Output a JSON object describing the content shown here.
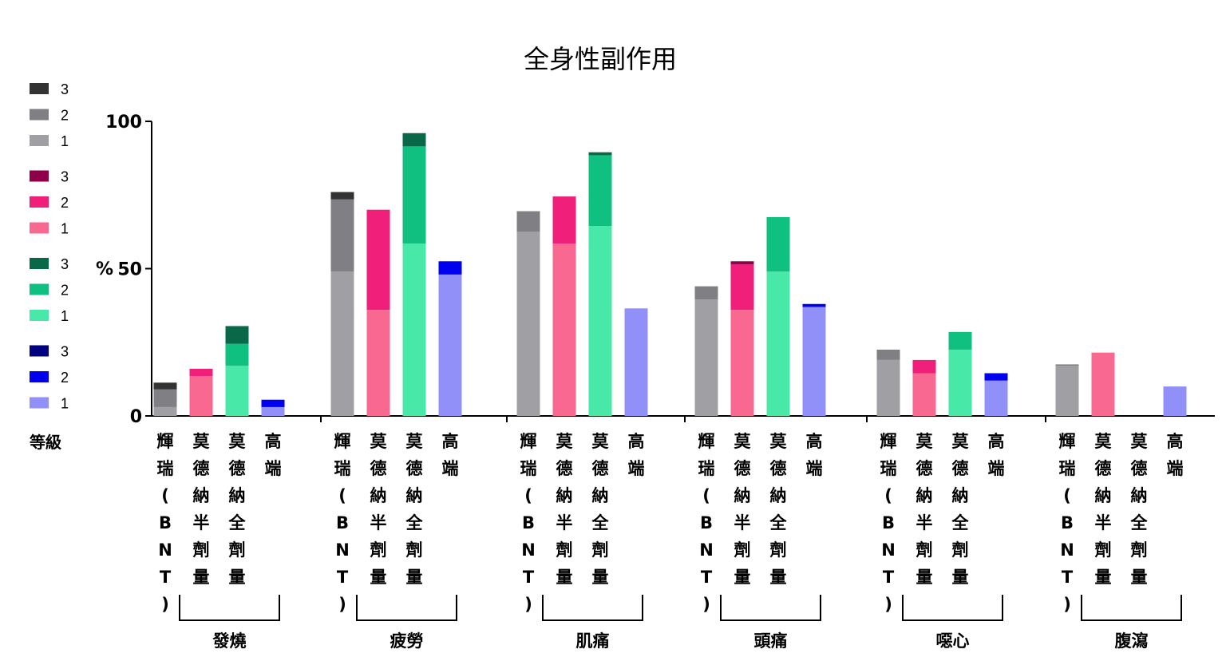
{
  "chart_data": {
    "type": "bar",
    "stacked": true,
    "title": "全身性副作用",
    "ylabel": "%",
    "ylim": [
      0,
      100
    ],
    "yticks": [
      0,
      50,
      100
    ],
    "legend_title": "等級",
    "legend_position": "left",
    "grade_labels": [
      "3",
      "2",
      "1"
    ],
    "vaccines": [
      {
        "label": "輝瑞(BNT)",
        "colors": {
          "1": "#a0a0a4",
          "2": "#808084",
          "3": "#333333"
        }
      },
      {
        "label": "莫德納半劑量",
        "colors": {
          "1": "#f86890",
          "2": "#f0207a",
          "3": "#900048"
        }
      },
      {
        "label": "莫德納全劑量",
        "colors": {
          "1": "#48e8a8",
          "2": "#10c080",
          "3": "#086848"
        }
      },
      {
        "label": "高端",
        "colors": {
          "1": "#9090f8",
          "2": "#0000f0",
          "3": "#000080"
        }
      }
    ],
    "groups": [
      {
        "label": "發燒",
        "bars": [
          {
            "g1": 3,
            "g2": 6,
            "g3": 2.3
          },
          {
            "g1": 13.5,
            "g2": 2.5,
            "g3": 0
          },
          {
            "g1": 17,
            "g2": 7.5,
            "g3": 6
          },
          {
            "g1": 3,
            "g2": 2.5,
            "g3": 0
          }
        ]
      },
      {
        "label": "疲勞",
        "bars": [
          {
            "g1": 49,
            "g2": 24.5,
            "g3": 2.5
          },
          {
            "g1": 36,
            "g2": 34,
            "g3": 0
          },
          {
            "g1": 58.5,
            "g2": 33,
            "g3": 4.5
          },
          {
            "g1": 48,
            "g2": 4.5,
            "g3": 0
          }
        ]
      },
      {
        "label": "肌痛",
        "bars": [
          {
            "g1": 62.5,
            "g2": 7,
            "g3": 0
          },
          {
            "g1": 58.5,
            "g2": 16,
            "g3": 0
          },
          {
            "g1": 64.5,
            "g2": 24,
            "g3": 1
          },
          {
            "g1": 36.5,
            "g2": 0,
            "g3": 0
          }
        ]
      },
      {
        "label": "頭痛",
        "bars": [
          {
            "g1": 39.5,
            "g2": 4.5,
            "g3": 0
          },
          {
            "g1": 36,
            "g2": 15.5,
            "g3": 1
          },
          {
            "g1": 49,
            "g2": 18.5,
            "g3": 0
          },
          {
            "g1": 37,
            "g2": 1,
            "g3": 0
          }
        ]
      },
      {
        "label": "噁心",
        "bars": [
          {
            "g1": 19,
            "g2": 3.5,
            "g3": 0
          },
          {
            "g1": 14.5,
            "g2": 4.5,
            "g3": 0
          },
          {
            "g1": 22.5,
            "g2": 6,
            "g3": 0
          },
          {
            "g1": 12,
            "g2": 2.5,
            "g3": 0
          }
        ]
      },
      {
        "label": "腹瀉",
        "bars": [
          {
            "g1": 17,
            "g2": 0.5,
            "g3": 0
          },
          {
            "g1": 21.5,
            "g2": 0,
            "g3": 0
          },
          {
            "g1": 0,
            "g2": 0,
            "g3": 0
          },
          {
            "g1": 10,
            "g2": 0,
            "g3": 0
          }
        ]
      }
    ]
  }
}
